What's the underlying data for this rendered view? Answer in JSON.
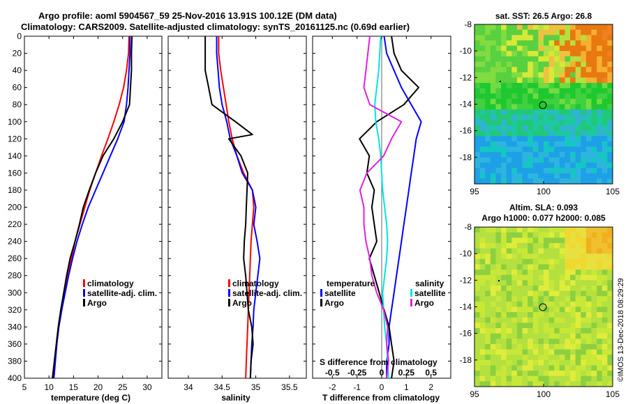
{
  "title": {
    "line1": "Argo profile: aoml 5904567_59 25-Nov-2016 13.91S 100.12E (DM data)",
    "line2": "Climatology: CARS2009. Satellite-adjusted climatology: synTS_20161125.nc (0.69d earlier)"
  },
  "credit": "©IMOS 13-Dec-2018 08:29:29",
  "colors": {
    "climatology": "#ff0000",
    "satellite": "#0000ff",
    "argo": "#000000",
    "sat_salinity": "#00e5e5",
    "argo_salinity": "#e020e0"
  },
  "chart_data": [
    {
      "type": "line",
      "id": "temperature",
      "xlabel": "temperature (deg C)",
      "ylabel": "",
      "xlim": [
        5,
        33
      ],
      "ylim": [
        400,
        0
      ],
      "xticks": [
        "5",
        "10",
        "15",
        "20",
        "25",
        "30"
      ],
      "yticks": [
        "0",
        "20",
        "40",
        "60",
        "80",
        "100",
        "120",
        "140",
        "160",
        "180",
        "200",
        "220",
        "240",
        "260",
        "280",
        "300",
        "320",
        "340",
        "360",
        "380",
        "400"
      ],
      "legend": [
        "climatology",
        "satellite-adj. clim.",
        "Argo"
      ],
      "series": [
        {
          "name": "climatology",
          "color": "#ff0000",
          "x": [
            26.3,
            26.2,
            25.8,
            25.2,
            24.3,
            23.2,
            22,
            20.7,
            19.5,
            18.3,
            17.3,
            16.3,
            15.3,
            14.6,
            13.8,
            13.1,
            12.6,
            12,
            11.6,
            11.3,
            11
          ],
          "y": [
            0,
            20,
            40,
            60,
            80,
            100,
            120,
            140,
            160,
            180,
            200,
            220,
            240,
            260,
            280,
            300,
            320,
            340,
            360,
            380,
            400
          ]
        },
        {
          "name": "satellite-adj. clim.",
          "color": "#0000ff",
          "x": [
            26.5,
            26.5,
            26.3,
            26.1,
            25.8,
            25.3,
            24,
            22.5,
            21,
            19.5,
            18,
            16.8,
            15.7,
            14.8,
            14,
            13.3,
            12.6,
            12,
            11.6,
            11.3,
            11
          ],
          "y": [
            0,
            20,
            40,
            60,
            80,
            100,
            120,
            140,
            160,
            180,
            200,
            220,
            240,
            260,
            280,
            300,
            320,
            340,
            360,
            380,
            400
          ]
        },
        {
          "name": "Argo",
          "color": "#000000",
          "x": [
            26.9,
            26.8,
            26.8,
            26.6,
            26.4,
            25,
            23.2,
            21,
            19.5,
            18.2,
            17,
            16.2,
            15.3,
            14.3,
            13.6,
            13,
            12.4,
            11.9,
            11.5,
            11.1,
            10.7
          ],
          "y": [
            0,
            20,
            40,
            60,
            80,
            100,
            120,
            140,
            160,
            180,
            200,
            220,
            240,
            260,
            280,
            300,
            320,
            340,
            360,
            380,
            400
          ]
        }
      ]
    },
    {
      "type": "line",
      "id": "salinity",
      "xlabel": "salinity",
      "xlim": [
        33.7,
        35.75
      ],
      "ylim": [
        400,
        0
      ],
      "xticks": [
        "34",
        "34.5",
        "35",
        "35.5"
      ],
      "legend": [
        "climatology",
        "satellite-adj. clim.",
        "Argo"
      ],
      "series": [
        {
          "name": "climatology",
          "color": "#ff0000",
          "x": [
            34.45,
            34.45,
            34.48,
            34.52,
            34.56,
            34.6,
            34.65,
            34.72,
            34.82,
            34.95,
            34.97,
            34.95,
            34.93,
            34.92,
            34.91,
            34.9,
            34.89,
            34.88,
            34.87,
            34.86,
            34.85
          ],
          "y": [
            0,
            20,
            40,
            60,
            80,
            100,
            120,
            140,
            160,
            180,
            200,
            220,
            240,
            260,
            280,
            300,
            320,
            340,
            360,
            380,
            400
          ]
        },
        {
          "name": "satellite-adj. clim.",
          "color": "#0000ff",
          "x": [
            34.42,
            34.42,
            34.44,
            34.46,
            34.5,
            34.57,
            34.62,
            34.72,
            34.8,
            34.95,
            35,
            34.97,
            35.02,
            35.06,
            35.03,
            35,
            34.97,
            34.96,
            34.94,
            34.93,
            34.92
          ],
          "y": [
            0,
            20,
            40,
            60,
            80,
            100,
            120,
            140,
            160,
            180,
            200,
            220,
            240,
            260,
            280,
            300,
            320,
            340,
            360,
            380,
            400
          ]
        },
        {
          "name": "Argo",
          "color": "#000000",
          "x": [
            34.25,
            34.25,
            34.25,
            34.3,
            34.35,
            34.7,
            34.95,
            34.6,
            34.78,
            34.88,
            34.86,
            34.85,
            34.83,
            34.82,
            34.85,
            34.87,
            34.89,
            34.94,
            34.96,
            34.93,
            34.92
          ],
          "y": [
            0,
            18,
            40,
            60,
            80,
            100,
            115,
            120,
            140,
            160,
            200,
            220,
            240,
            260,
            280,
            300,
            320,
            340,
            360,
            380,
            400
          ]
        }
      ]
    },
    {
      "type": "line",
      "id": "difference",
      "xlabel": "T difference from climatology",
      "xlabel2": "S difference from climatology",
      "xlim": [
        -2.8,
        2.8
      ],
      "ylim": [
        400,
        0
      ],
      "xticks": [
        "-2",
        "-1",
        "0",
        "1",
        "2"
      ],
      "xticks2": [
        "-0.5",
        "-0.25",
        "0",
        "0.25",
        "0.5"
      ],
      "legend_left_title": "temperature",
      "legend_right_title": "salinity",
      "legend_left": [
        "satellite",
        "Argo"
      ],
      "legend_right": [
        "satellite",
        "Argo"
      ],
      "series": [
        {
          "name": "T satellite",
          "color": "#0000ff",
          "x": [
            0.1,
            0.2,
            0.5,
            0.8,
            1.2,
            1.6,
            1.4,
            1.3,
            1.2,
            1.1,
            1.0,
            0.9,
            0.8,
            0.7,
            0.6,
            0.5,
            0.4,
            0.3,
            0.3,
            0.2,
            0.2
          ],
          "y": [
            0,
            20,
            40,
            60,
            80,
            100,
            120,
            140,
            160,
            180,
            200,
            220,
            240,
            260,
            280,
            300,
            320,
            340,
            360,
            380,
            400
          ]
        },
        {
          "name": "T Argo",
          "color": "#000000",
          "x": [
            0.4,
            0.5,
            0.8,
            1.5,
            0.9,
            -0.2,
            -0.9,
            -0.5,
            -0.6,
            -0.3,
            -0.4,
            -0.3,
            -0.2,
            -0.5,
            -0.3,
            -0.1,
            0.1,
            0.3,
            0.4,
            0.5,
            0.4
          ],
          "y": [
            0,
            20,
            40,
            60,
            80,
            100,
            120,
            140,
            160,
            180,
            200,
            220,
            240,
            260,
            280,
            300,
            320,
            340,
            360,
            380,
            400
          ]
        },
        {
          "name": "S satellite",
          "color": "#00e5e5",
          "x": [
            -0.01,
            -0.02,
            -0.03,
            -0.05,
            -0.07,
            -0.06,
            -0.03,
            -0.01,
            0,
            0.01,
            0.03,
            0.05,
            0.06,
            0.05,
            0.03,
            0.01,
            0.02,
            0.03,
            0.05,
            0.06,
            0.07
          ],
          "y": [
            0,
            20,
            40,
            60,
            80,
            100,
            120,
            140,
            160,
            180,
            200,
            220,
            240,
            260,
            280,
            300,
            320,
            340,
            360,
            380,
            400
          ]
        },
        {
          "name": "S Argo",
          "color": "#e020e0",
          "x": [
            -0.12,
            -0.14,
            -0.16,
            -0.18,
            -0.12,
            0.2,
            0.1,
            0.02,
            -0.15,
            -0.22,
            -0.18,
            -0.18,
            -0.16,
            -0.12,
            -0.1,
            -0.05,
            0.02,
            0.06,
            0.05,
            0.07,
            0.05
          ],
          "y": [
            0,
            20,
            40,
            60,
            80,
            100,
            120,
            140,
            160,
            180,
            200,
            220,
            240,
            260,
            280,
            300,
            320,
            340,
            360,
            380,
            400
          ]
        }
      ]
    },
    {
      "type": "heatmap",
      "id": "sst_map",
      "title": "sat. SST: 26.5 Argo: 26.8",
      "xlim": [
        95,
        105
      ],
      "ylim": [
        -20,
        -8
      ],
      "xticks": [
        "95",
        "100",
        "105"
      ],
      "yticks": [
        "-8",
        "-10",
        "-12",
        "-14",
        "-16",
        "-18"
      ],
      "marker": {
        "lon": 100.12,
        "lat": -13.91
      }
    },
    {
      "type": "heatmap",
      "id": "sla_map",
      "title": "Altim. SLA: 0.093",
      "subtitle": "Argo h1000: 0.077 h2000: 0.085",
      "xlim": [
        95,
        105
      ],
      "ylim": [
        -20,
        -8
      ],
      "xticks": [
        "95",
        "100",
        "105"
      ],
      "yticks": [
        "-8",
        "-10",
        "-12",
        "-14",
        "-16",
        "-18"
      ],
      "marker": {
        "lon": 100.12,
        "lat": -13.91
      }
    }
  ]
}
